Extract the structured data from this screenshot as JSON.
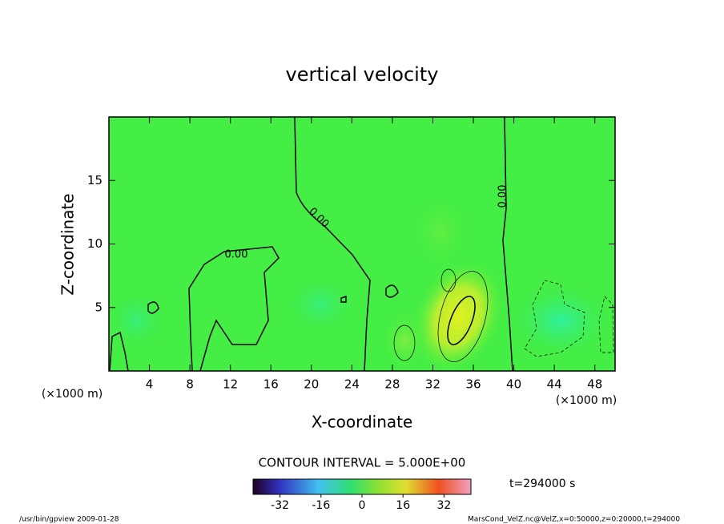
{
  "chart_data": {
    "type": "contour",
    "title": "vertical velocity",
    "x_label": "X-coordinate",
    "y_label": "Z-coordinate",
    "x_unit": "(×1000 m)",
    "y_unit": "(×1000 m)",
    "xlim": [
      0,
      50
    ],
    "xticks": [
      4,
      8,
      12,
      16,
      20,
      24,
      28,
      32,
      36,
      40,
      44,
      48
    ],
    "ylim": [
      0,
      20
    ],
    "yticks": [
      5,
      10,
      15
    ],
    "contour_labels": [
      "0.00",
      "0.00",
      "0.00"
    ],
    "contour_interval": "CONTOUR INTERVAL = 5.000E+00",
    "colorbar": {
      "lim": [
        -42.5,
        42.5
      ],
      "ticks": [
        -32,
        -16,
        0,
        16,
        32
      ]
    },
    "time": "t=294000 s",
    "footer_left": "/usr/bin/gpview   2009-01-28",
    "footer_right": "MarsCond_VelZ.nc@VelZ,x=0:50000,z=0:20000,t=294000"
  }
}
